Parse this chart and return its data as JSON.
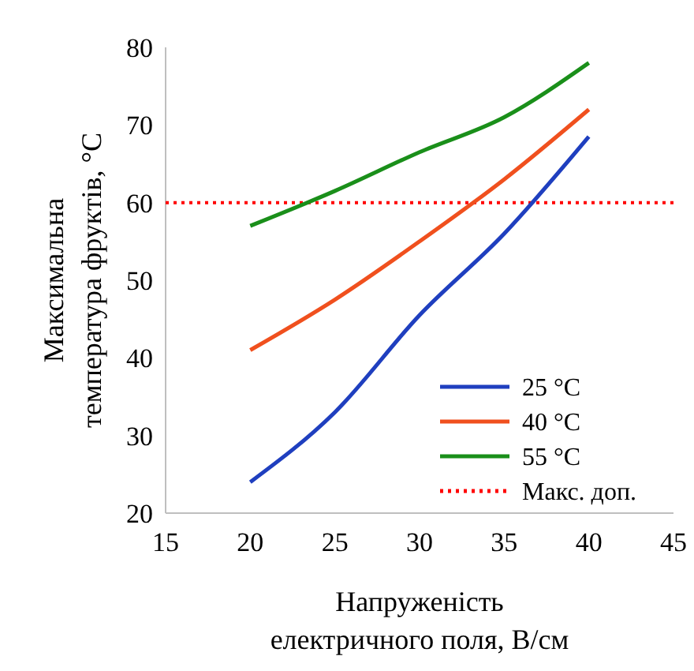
{
  "chart_data": {
    "type": "line",
    "xlabel": "Напруженість електричного поля, В/см",
    "ylabel": "Максимальна температура фруктів, °C",
    "x": [
      20,
      25,
      30,
      35,
      40
    ],
    "series": [
      {
        "name": "25 °C",
        "color": "#1f3fbf",
        "values": [
          24,
          33,
          45.5,
          56,
          68.5
        ]
      },
      {
        "name": "40 °C",
        "color": "#f0501e",
        "values": [
          41,
          47.5,
          55,
          63,
          72
        ]
      },
      {
        "name": "55 °C",
        "color": "#1a8f1a",
        "values": [
          57,
          61.5,
          66.5,
          71,
          78
        ]
      }
    ],
    "xlim": [
      15,
      45
    ],
    "xticks": [
      15,
      20,
      25,
      30,
      35,
      40,
      45
    ],
    "ylim": [
      20,
      80
    ],
    "yticks": [
      20,
      30,
      40,
      50,
      60,
      70,
      80
    ],
    "ref_lines": [
      {
        "axis": "y",
        "value": 60,
        "label": "Макс. доп.",
        "color": "#ff0000",
        "line_style": "dotted"
      }
    ],
    "legend": "bottom right",
    "grid": false,
    "marker": "none",
    "line_style": "solid"
  }
}
